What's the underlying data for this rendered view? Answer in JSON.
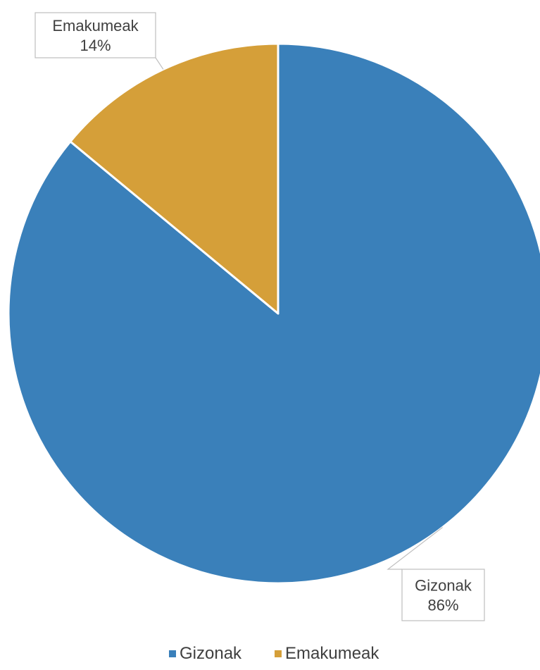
{
  "chart_data": {
    "type": "pie",
    "title": "",
    "slices": [
      {
        "name": "Gizonak",
        "value": 86,
        "label": "86%",
        "color": "#3A80BA"
      },
      {
        "name": "Emakumeak",
        "value": 14,
        "label": "14%",
        "color": "#D59F39"
      }
    ],
    "legend": {
      "position": "bottom",
      "items": [
        "Gizonak",
        "Emakumeak"
      ]
    }
  }
}
